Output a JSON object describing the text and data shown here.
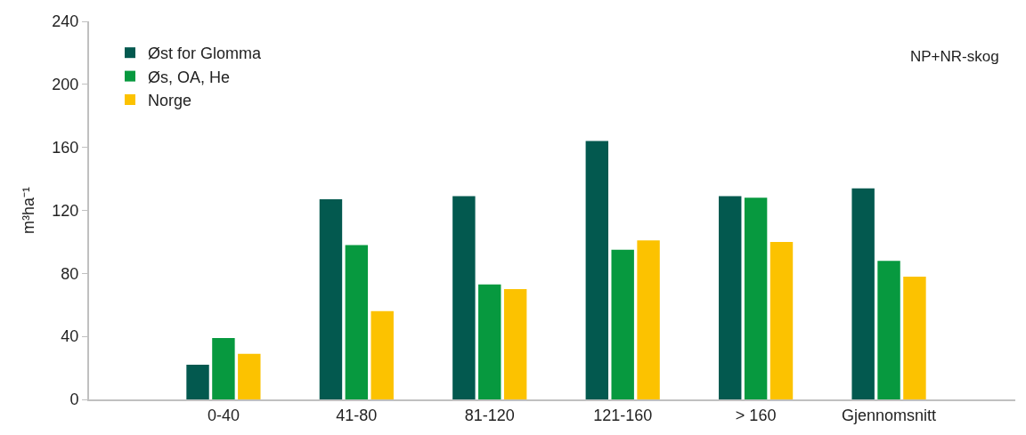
{
  "chart_data": {
    "type": "bar",
    "ylabel": "m³ha⁻¹",
    "categories": [
      "0-40",
      "41-80",
      "81-120",
      "121-160",
      "> 160",
      "Gjennomsnitt"
    ],
    "series": [
      {
        "name": "Øst for Glomma",
        "color": "#03594f",
        "values": [
          22,
          127,
          129,
          164,
          129,
          134
        ]
      },
      {
        "name": "Øs, OA, He",
        "color": "#07993f",
        "values": [
          39,
          98,
          73,
          95,
          128,
          88
        ]
      },
      {
        "name": "Norge",
        "color": "#fcc200",
        "values": [
          29,
          56,
          70,
          101,
          100,
          78
        ]
      }
    ],
    "ylim": [
      0,
      240
    ],
    "yticks": [
      0,
      40,
      80,
      120,
      160,
      200,
      240
    ],
    "grid": false,
    "legend": "top left",
    "annotations": [
      "NP+NR-skog"
    ]
  }
}
